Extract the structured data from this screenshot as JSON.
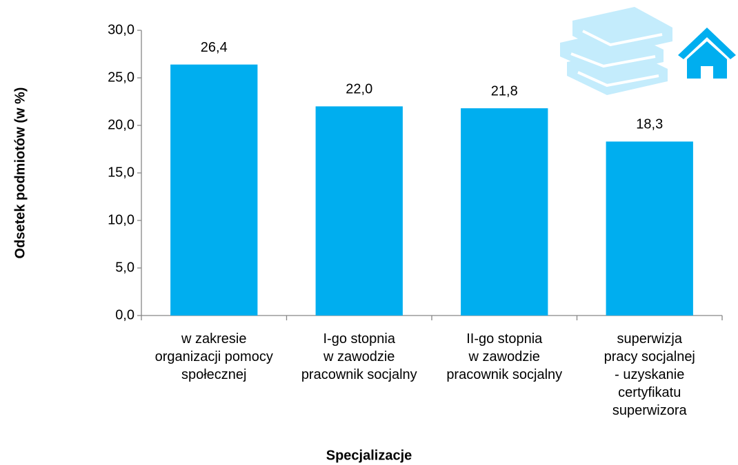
{
  "chart_data": {
    "type": "bar",
    "x_label": "Specjalizacje",
    "y_label": "Odsetek podmiotów (w %)",
    "categories": [
      [
        "w zakresie",
        "organizacji pomocy",
        "społecznej"
      ],
      [
        "I-go stopnia",
        "w zawodzie",
        "pracownik socjalny"
      ],
      [
        "II-go stopnia",
        "w zawodzie",
        "pracownik socjalny"
      ],
      [
        "superwizja",
        "pracy socjalnej",
        "- uzyskanie",
        "certyfikatu",
        "superwizora"
      ]
    ],
    "values": [
      26.4,
      22.0,
      21.8,
      18.3
    ],
    "value_labels": [
      "26,4",
      "22,0",
      "21,8",
      "18,3"
    ],
    "color": "#00aeef",
    "ylim": [
      0,
      30
    ],
    "yticks": [
      {
        "value": 0,
        "label": "0,0"
      },
      {
        "value": 5,
        "label": "5,0"
      },
      {
        "value": 10,
        "label": "10,0"
      },
      {
        "value": 15,
        "label": "15,0"
      },
      {
        "value": 20,
        "label": "20,0"
      },
      {
        "value": 25,
        "label": "25,0"
      },
      {
        "value": 30,
        "label": "30,0"
      }
    ],
    "grid": false
  }
}
